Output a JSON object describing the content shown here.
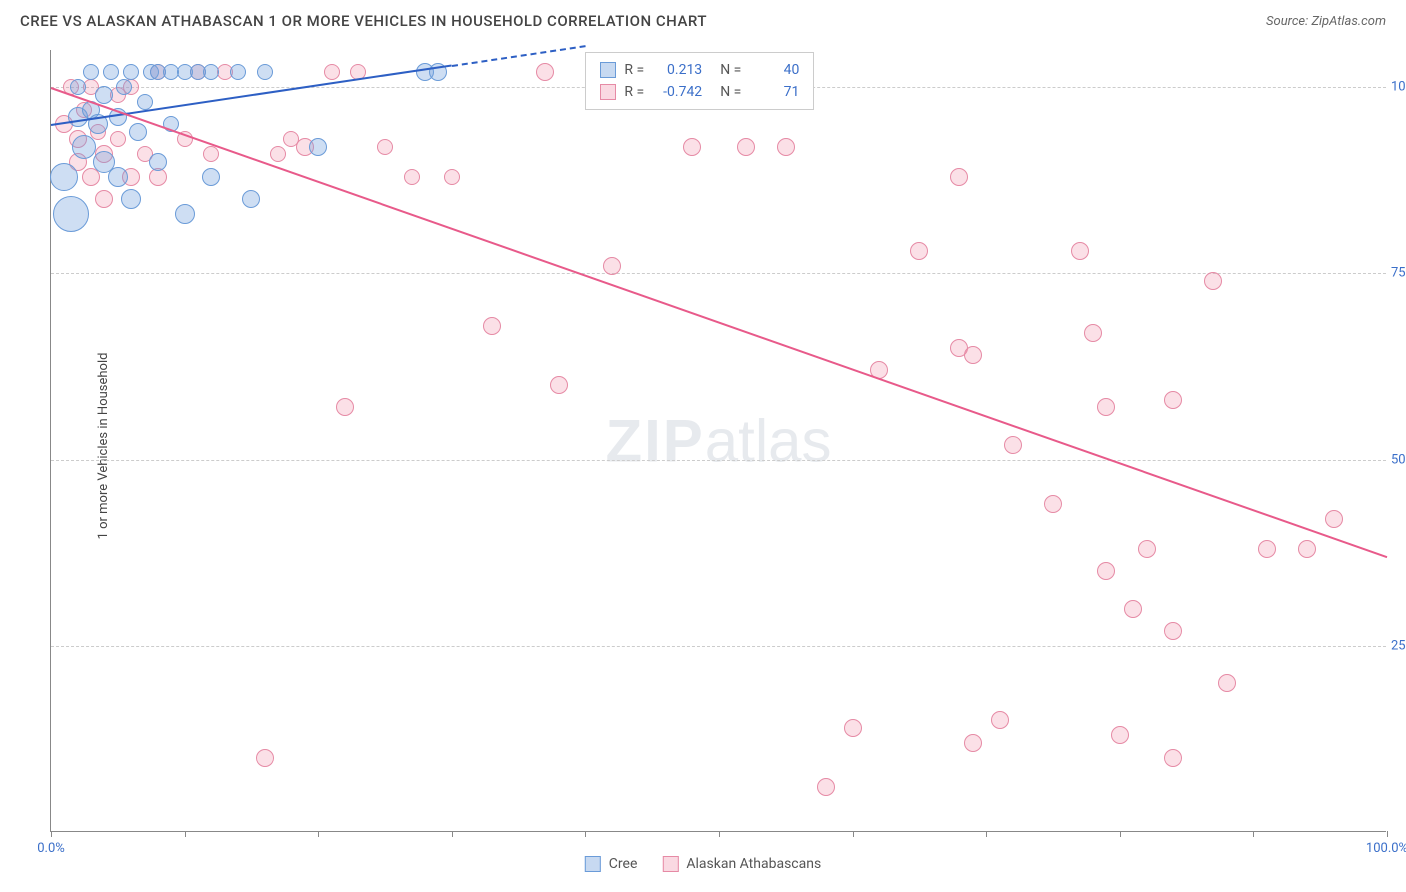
{
  "header": {
    "title": "CREE VS ALASKAN ATHABASCAN 1 OR MORE VEHICLES IN HOUSEHOLD CORRELATION CHART",
    "source_prefix": "Source: ",
    "source": "ZipAtlas.com"
  },
  "chart": {
    "type": "scatter",
    "ylabel": "1 or more Vehicles in Household",
    "xlim": [
      0,
      100
    ],
    "ylim": [
      0,
      105
    ],
    "x_ticks": [
      0,
      10,
      20,
      30,
      40,
      50,
      60,
      70,
      80,
      90,
      100
    ],
    "x_tick_labels": {
      "0": "0.0%",
      "100": "100.0%"
    },
    "y_gridlines": [
      25,
      50,
      75,
      100
    ],
    "y_tick_labels": {
      "25": "25.0%",
      "50": "50.0%",
      "75": "75.0%",
      "100": "100.0%"
    },
    "background_color": "#ffffff",
    "grid_color": "#cccccc",
    "axis_color": "#888888",
    "tick_label_color": "#3b6fc9",
    "watermark": "ZIPatlas",
    "series": {
      "cree": {
        "label": "Cree",
        "color_fill": "rgba(115,160,220,0.35)",
        "color_stroke": "#6a9bd8",
        "trend_color": "#2d5fc4",
        "r": 0.213,
        "n": 40,
        "trend": {
          "x1": 0,
          "y1": 95,
          "x2": 30,
          "y2": 103,
          "dash_to_x": 40
        },
        "points": [
          {
            "x": 1,
            "y": 88,
            "r": 14
          },
          {
            "x": 1.5,
            "y": 83,
            "r": 18
          },
          {
            "x": 2,
            "y": 96,
            "r": 10
          },
          {
            "x": 2,
            "y": 100,
            "r": 8
          },
          {
            "x": 2.5,
            "y": 92,
            "r": 12
          },
          {
            "x": 3,
            "y": 97,
            "r": 9
          },
          {
            "x": 3,
            "y": 102,
            "r": 8
          },
          {
            "x": 3.5,
            "y": 95,
            "r": 10
          },
          {
            "x": 4,
            "y": 99,
            "r": 9
          },
          {
            "x": 4,
            "y": 90,
            "r": 11
          },
          {
            "x": 4.5,
            "y": 102,
            "r": 8
          },
          {
            "x": 5,
            "y": 96,
            "r": 9
          },
          {
            "x": 5,
            "y": 88,
            "r": 10
          },
          {
            "x": 5.5,
            "y": 100,
            "r": 8
          },
          {
            "x": 6,
            "y": 85,
            "r": 10
          },
          {
            "x": 6,
            "y": 102,
            "r": 8
          },
          {
            "x": 6.5,
            "y": 94,
            "r": 9
          },
          {
            "x": 7,
            "y": 98,
            "r": 8
          },
          {
            "x": 7.5,
            "y": 102,
            "r": 8
          },
          {
            "x": 8,
            "y": 90,
            "r": 9
          },
          {
            "x": 8,
            "y": 102,
            "r": 8
          },
          {
            "x": 9,
            "y": 95,
            "r": 8
          },
          {
            "x": 9,
            "y": 102,
            "r": 8
          },
          {
            "x": 10,
            "y": 83,
            "r": 10
          },
          {
            "x": 10,
            "y": 102,
            "r": 8
          },
          {
            "x": 11,
            "y": 102,
            "r": 8
          },
          {
            "x": 12,
            "y": 88,
            "r": 9
          },
          {
            "x": 12,
            "y": 102,
            "r": 8
          },
          {
            "x": 14,
            "y": 102,
            "r": 8
          },
          {
            "x": 15,
            "y": 85,
            "r": 9
          },
          {
            "x": 16,
            "y": 102,
            "r": 8
          },
          {
            "x": 20,
            "y": 92,
            "r": 9
          },
          {
            "x": 28,
            "y": 102,
            "r": 9
          },
          {
            "x": 29,
            "y": 102,
            "r": 9
          }
        ]
      },
      "athabascan": {
        "label": "Alaskan Athabascans",
        "color_fill": "rgba(240,130,160,0.25)",
        "color_stroke": "#e68aa5",
        "trend_color": "#e85a8a",
        "r": -0.742,
        "n": 71,
        "trend": {
          "x1": 0,
          "y1": 100,
          "x2": 100,
          "y2": 37
        },
        "points": [
          {
            "x": 1,
            "y": 95,
            "r": 9
          },
          {
            "x": 1.5,
            "y": 100,
            "r": 8
          },
          {
            "x": 2,
            "y": 90,
            "r": 9
          },
          {
            "x": 2,
            "y": 93,
            "r": 9
          },
          {
            "x": 2.5,
            "y": 97,
            "r": 8
          },
          {
            "x": 3,
            "y": 88,
            "r": 9
          },
          {
            "x": 3,
            "y": 100,
            "r": 8
          },
          {
            "x": 3.5,
            "y": 94,
            "r": 8
          },
          {
            "x": 4,
            "y": 91,
            "r": 9
          },
          {
            "x": 4,
            "y": 85,
            "r": 9
          },
          {
            "x": 5,
            "y": 99,
            "r": 8
          },
          {
            "x": 5,
            "y": 93,
            "r": 8
          },
          {
            "x": 6,
            "y": 88,
            "r": 9
          },
          {
            "x": 6,
            "y": 100,
            "r": 8
          },
          {
            "x": 7,
            "y": 91,
            "r": 8
          },
          {
            "x": 8,
            "y": 88,
            "r": 9
          },
          {
            "x": 8,
            "y": 102,
            "r": 8
          },
          {
            "x": 10,
            "y": 93,
            "r": 8
          },
          {
            "x": 11,
            "y": 102,
            "r": 8
          },
          {
            "x": 12,
            "y": 91,
            "r": 8
          },
          {
            "x": 13,
            "y": 102,
            "r": 8
          },
          {
            "x": 16,
            "y": 10,
            "r": 9
          },
          {
            "x": 17,
            "y": 91,
            "r": 8
          },
          {
            "x": 18,
            "y": 93,
            "r": 8
          },
          {
            "x": 19,
            "y": 92,
            "r": 9
          },
          {
            "x": 21,
            "y": 102,
            "r": 8
          },
          {
            "x": 22,
            "y": 57,
            "r": 9
          },
          {
            "x": 23,
            "y": 102,
            "r": 8
          },
          {
            "x": 25,
            "y": 92,
            "r": 8
          },
          {
            "x": 27,
            "y": 88,
            "r": 8
          },
          {
            "x": 30,
            "y": 88,
            "r": 8
          },
          {
            "x": 33,
            "y": 68,
            "r": 9
          },
          {
            "x": 37,
            "y": 102,
            "r": 9
          },
          {
            "x": 38,
            "y": 60,
            "r": 9
          },
          {
            "x": 42,
            "y": 76,
            "r": 9
          },
          {
            "x": 48,
            "y": 92,
            "r": 9
          },
          {
            "x": 52,
            "y": 92,
            "r": 9
          },
          {
            "x": 55,
            "y": 92,
            "r": 9
          },
          {
            "x": 58,
            "y": 6,
            "r": 9
          },
          {
            "x": 60,
            "y": 14,
            "r": 9
          },
          {
            "x": 62,
            "y": 62,
            "r": 9
          },
          {
            "x": 65,
            "y": 78,
            "r": 9
          },
          {
            "x": 68,
            "y": 88,
            "r": 9
          },
          {
            "x": 68,
            "y": 65,
            "r": 9
          },
          {
            "x": 69,
            "y": 64,
            "r": 9
          },
          {
            "x": 69,
            "y": 12,
            "r": 9
          },
          {
            "x": 71,
            "y": 15,
            "r": 9
          },
          {
            "x": 72,
            "y": 52,
            "r": 9
          },
          {
            "x": 75,
            "y": 44,
            "r": 9
          },
          {
            "x": 77,
            "y": 78,
            "r": 9
          },
          {
            "x": 78,
            "y": 67,
            "r": 9
          },
          {
            "x": 79,
            "y": 57,
            "r": 9
          },
          {
            "x": 79,
            "y": 35,
            "r": 9
          },
          {
            "x": 80,
            "y": 13,
            "r": 9
          },
          {
            "x": 81,
            "y": 30,
            "r": 9
          },
          {
            "x": 82,
            "y": 38,
            "r": 9
          },
          {
            "x": 84,
            "y": 58,
            "r": 9
          },
          {
            "x": 84,
            "y": 27,
            "r": 9
          },
          {
            "x": 84,
            "y": 10,
            "r": 9
          },
          {
            "x": 87,
            "y": 74,
            "r": 9
          },
          {
            "x": 88,
            "y": 20,
            "r": 9
          },
          {
            "x": 91,
            "y": 38,
            "r": 9
          },
          {
            "x": 94,
            "y": 38,
            "r": 9
          },
          {
            "x": 96,
            "y": 42,
            "r": 9
          }
        ]
      }
    },
    "legend_box": {
      "rows": [
        {
          "swatch": "a",
          "r_label": "R =",
          "r_val": "0.213",
          "n_label": "N =",
          "n_val": "40"
        },
        {
          "swatch": "b",
          "r_label": "R =",
          "r_val": "-0.742",
          "n_label": "N =",
          "n_val": "71"
        }
      ]
    }
  }
}
